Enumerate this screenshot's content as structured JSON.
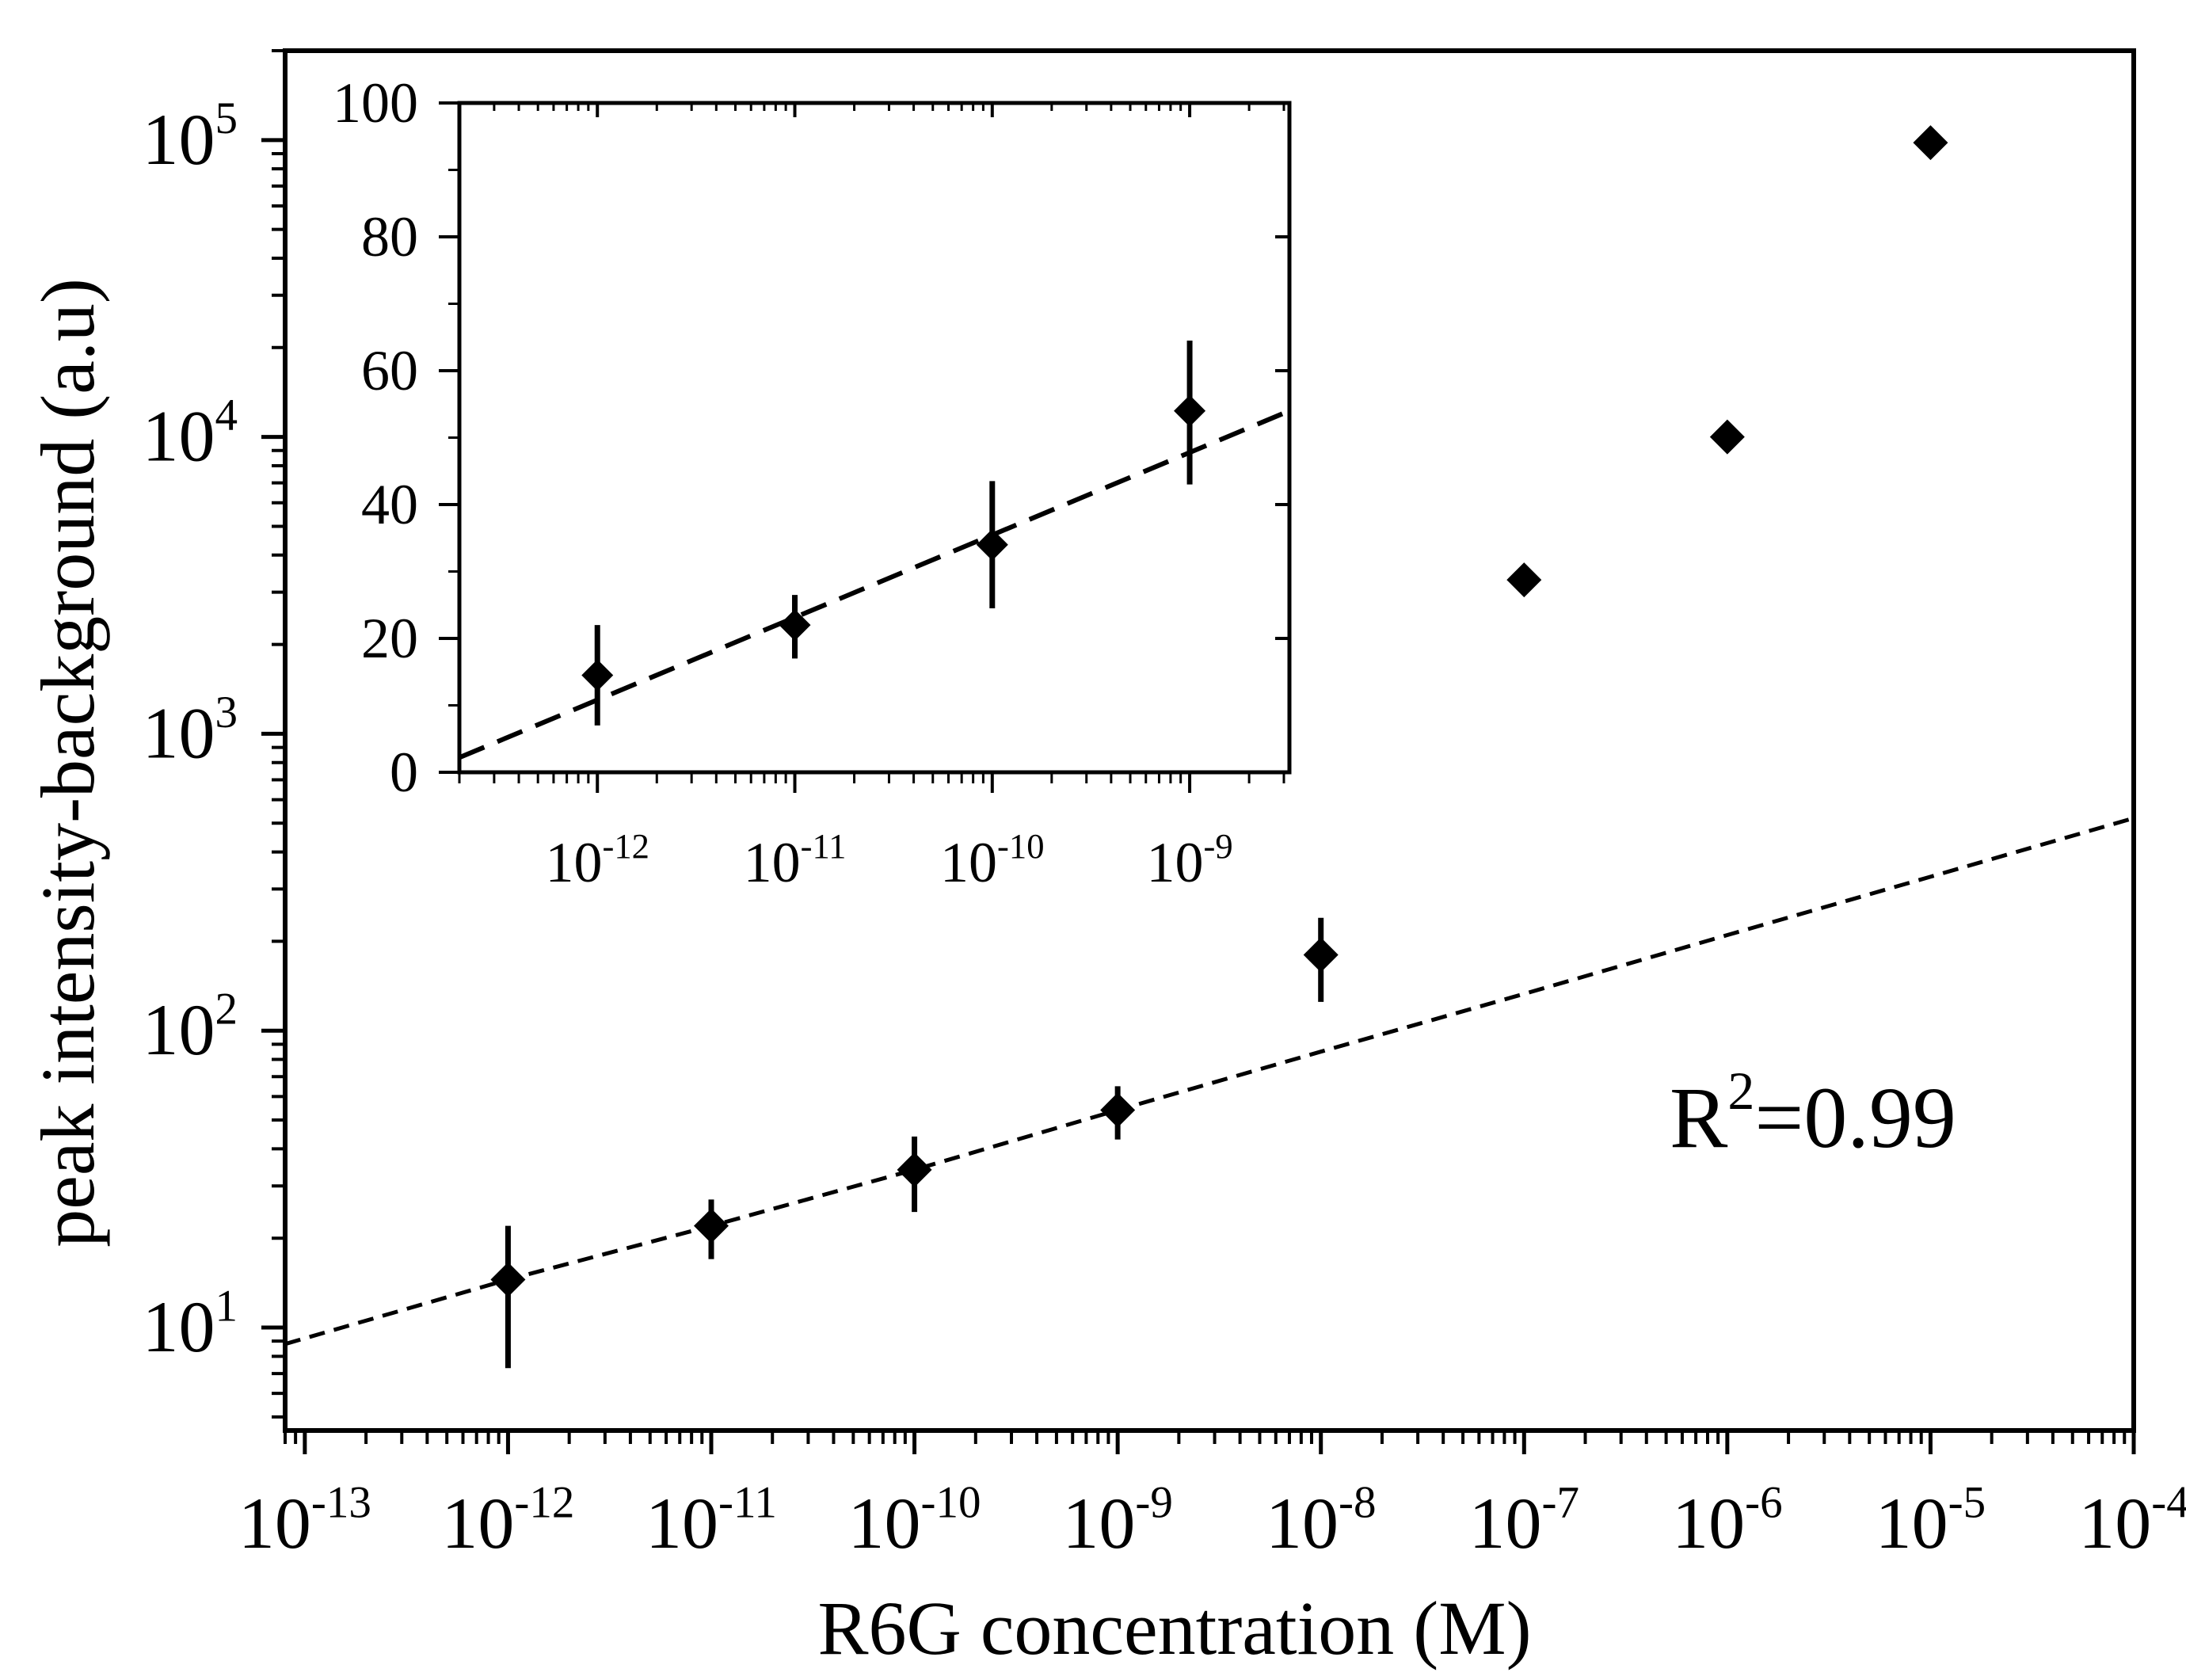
{
  "chart_data": [
    {
      "type": "scatter",
      "xlabel": "R6G concentration (M)",
      "ylabel": "peak intensity-background (a.u)",
      "xscale": "log",
      "yscale": "log",
      "xlim": [
        8e-14,
        0.0001
      ],
      "ylim": [
        4.5,
        200000
      ],
      "x_tick_labels": [
        {
          "base": "10",
          "exp": "-13"
        },
        {
          "base": "10",
          "exp": "-12"
        },
        {
          "base": "10",
          "exp": "-11"
        },
        {
          "base": "10",
          "exp": "-10"
        },
        {
          "base": "10",
          "exp": "-9"
        },
        {
          "base": "10",
          "exp": "-8"
        },
        {
          "base": "10",
          "exp": "-7"
        },
        {
          "base": "10",
          "exp": "-6"
        },
        {
          "base": "10",
          "exp": "-5"
        },
        {
          "base": "10",
          "exp": "-4"
        }
      ],
      "y_tick_labels": [
        {
          "base": "10",
          "exp": "1"
        },
        {
          "base": "10",
          "exp": "2"
        },
        {
          "base": "10",
          "exp": "3"
        },
        {
          "base": "10",
          "exp": "4"
        },
        {
          "base": "10",
          "exp": "5"
        }
      ],
      "series": [
        {
          "marker": "diamond",
          "color": "#000000",
          "x": [
            1e-12,
            1e-11,
            1e-10,
            1e-09,
            1e-08,
            1e-07,
            1e-06,
            1e-05
          ],
          "y": [
            14.5,
            22,
            34,
            54,
            180,
            3300,
            10000,
            98000
          ],
          "y_err_low": [
            7.3,
            17,
            24.5,
            43,
            125,
            2950,
            9000,
            91000
          ],
          "y_err_high": [
            22,
            27,
            44,
            65,
            240,
            3600,
            11000,
            104000
          ]
        }
      ],
      "fit_line": {
        "style": "dashed",
        "x": [
          8e-14,
          1e-12,
          1e-11,
          1e-10,
          1e-09,
          1e-08,
          1e-07,
          1e-06,
          1e-05,
          0.0001
        ],
        "y": [
          8.8,
          14.5,
          22,
          34,
          54,
          85,
          133,
          210,
          330,
          520
        ]
      },
      "annotation": {
        "prefix": "R",
        "sup": "2",
        "suffix": "=0.99"
      },
      "grid": false,
      "legend": "none"
    },
    {
      "type": "scatter",
      "position": "inset",
      "xscale": "log",
      "yscale": "linear",
      "xlim": [
        2e-13,
        3.2e-09
      ],
      "ylim": [
        0,
        100
      ],
      "y_ticks": [
        "0",
        "20",
        "40",
        "60",
        "80",
        "100"
      ],
      "x_tick_labels": [
        {
          "base": "10",
          "exp": "-12"
        },
        {
          "base": "10",
          "exp": "-11"
        },
        {
          "base": "10",
          "exp": "-10"
        },
        {
          "base": "10",
          "exp": "-9"
        }
      ],
      "series": [
        {
          "marker": "diamond",
          "color": "#000000",
          "x": [
            1e-12,
            1e-11,
            1e-10,
            1e-09
          ],
          "y": [
            14.5,
            22,
            34,
            54
          ],
          "y_err_low": [
            7,
            17,
            24.5,
            43
          ],
          "y_err_high": [
            22,
            26.5,
            43.5,
            64.5
          ]
        }
      ],
      "fit_line": {
        "style": "dashed",
        "x": [
          2e-13,
          3.2e-09
        ],
        "y": [
          2.2,
          54
        ]
      },
      "grid": false,
      "legend": "none"
    }
  ]
}
